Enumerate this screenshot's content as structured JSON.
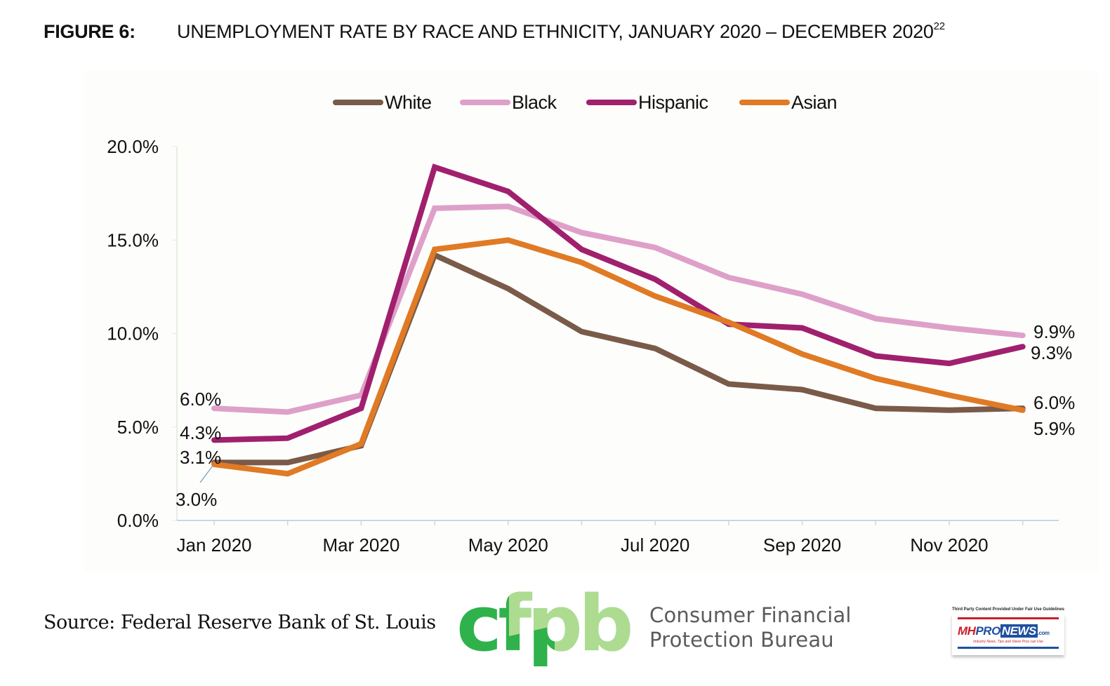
{
  "figure": {
    "number_label": "FIGURE 6:",
    "title": "UNEMPLOYMENT RATE BY RACE AND ETHNICITY, JANUARY 2020 – DECEMBER 2020",
    "footnote_ref": "22"
  },
  "source": "Source: Federal Reserve Bank of St. Louis",
  "cfpb": {
    "logo_text": "cfpb",
    "name_line1": "Consumer Financial",
    "name_line2": "Protection Bureau",
    "colors": {
      "dark_green": "#2fb24b",
      "light_green": "#addc91"
    }
  },
  "watermark": {
    "caption": "Third Party Content Provided Under Fair Use Guidelines",
    "brand_mh": "MH",
    "brand_pro": "PRO",
    "brand_news": "NEWS",
    "brand_com": ".com",
    "tagline": "Industry News, Tips and Views Pros can Use"
  },
  "chart_data": {
    "type": "line",
    "title": "",
    "xlabel": "",
    "ylabel": "",
    "x": [
      "Jan 2020",
      "Feb 2020",
      "Mar 2020",
      "Apr 2020",
      "May 2020",
      "Jun 2020",
      "Jul 2020",
      "Aug 2020",
      "Sep 2020",
      "Oct 2020",
      "Nov 2020",
      "Dec 2020"
    ],
    "x_tick_labels": [
      "Jan 2020",
      "Mar 2020",
      "May 2020",
      "Jul 2020",
      "Sep 2020",
      "Nov 2020"
    ],
    "y_ticks": [
      0,
      5,
      10,
      15,
      20
    ],
    "y_tick_labels": [
      "0.0%",
      "5.0%",
      "10.0%",
      "15.0%",
      "20.0%"
    ],
    "ylim": [
      0,
      20
    ],
    "grid": false,
    "legend_position": "top-center",
    "series": [
      {
        "name": "White",
        "color": "#7a5a48",
        "values": [
          3.1,
          3.1,
          4.0,
          14.2,
          12.4,
          10.1,
          9.2,
          7.3,
          7.0,
          6.0,
          5.9,
          6.0
        ]
      },
      {
        "name": "Black",
        "color": "#dea0c9",
        "values": [
          6.0,
          5.8,
          6.7,
          16.7,
          16.8,
          15.4,
          14.6,
          13.0,
          12.1,
          10.8,
          10.3,
          9.9
        ]
      },
      {
        "name": "Hispanic",
        "color": "#a0206e",
        "values": [
          4.3,
          4.4,
          6.0,
          18.9,
          17.6,
          14.5,
          12.9,
          10.5,
          10.3,
          8.8,
          8.4,
          9.3
        ]
      },
      {
        "name": "Asian",
        "color": "#e07a24",
        "values": [
          3.0,
          2.5,
          4.1,
          14.5,
          15.0,
          13.8,
          12.0,
          10.6,
          8.9,
          7.6,
          6.7,
          5.9
        ]
      }
    ],
    "annotations": [
      {
        "text": "6.0%",
        "series": "Black",
        "point": "Jan 2020",
        "side": "start"
      },
      {
        "text": "4.3%",
        "series": "Hispanic",
        "point": "Jan 2020",
        "side": "start"
      },
      {
        "text": "3.1%",
        "series": "White",
        "point": "Jan 2020",
        "side": "start"
      },
      {
        "text": "3.0%",
        "series": "Asian",
        "point": "Jan 2020",
        "side": "start-leader"
      },
      {
        "text": "9.9%",
        "series": "Black",
        "point": "Dec 2020",
        "side": "end"
      },
      {
        "text": "9.3%",
        "series": "Hispanic",
        "point": "Dec 2020",
        "side": "end"
      },
      {
        "text": "6.0%",
        "series": "White",
        "point": "Dec 2020",
        "side": "end"
      },
      {
        "text": "5.9%",
        "series": "Asian",
        "point": "Dec 2020",
        "side": "end"
      }
    ]
  }
}
